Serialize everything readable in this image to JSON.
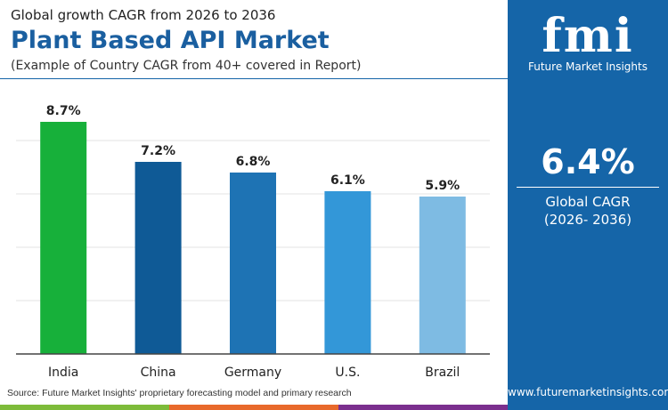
{
  "header": {
    "subtitle": "Global growth CAGR from 2026 to 2036",
    "title": "Plant Based API Market",
    "note": "(Example of Country CAGR from 40+ covered in Report)"
  },
  "source": "Source: Future Market Insights' proprietary forecasting model and primary research",
  "panel": {
    "logo_text": "fmi",
    "logo_sub": "Future Market Insights",
    "value": "6.4%",
    "label_line1": "Global CAGR",
    "label_line2": "(2026- 2036)",
    "website": "www.futuremarketinsights.com",
    "background": "#1565a8"
  },
  "chart_data": {
    "type": "bar",
    "categories": [
      "India",
      "China",
      "Germany",
      "U.S.",
      "Brazil"
    ],
    "values": [
      8.7,
      7.2,
      6.8,
      6.1,
      5.9
    ],
    "data_labels": [
      "8.7%",
      "7.2%",
      "6.8%",
      "6.1%",
      "5.9%"
    ],
    "colors": [
      "#17b03a",
      "#0f5a96",
      "#1e73b4",
      "#3397d8",
      "#7ebbe3"
    ],
    "ylim": [
      0,
      10
    ],
    "grid": true,
    "unit": "%"
  }
}
